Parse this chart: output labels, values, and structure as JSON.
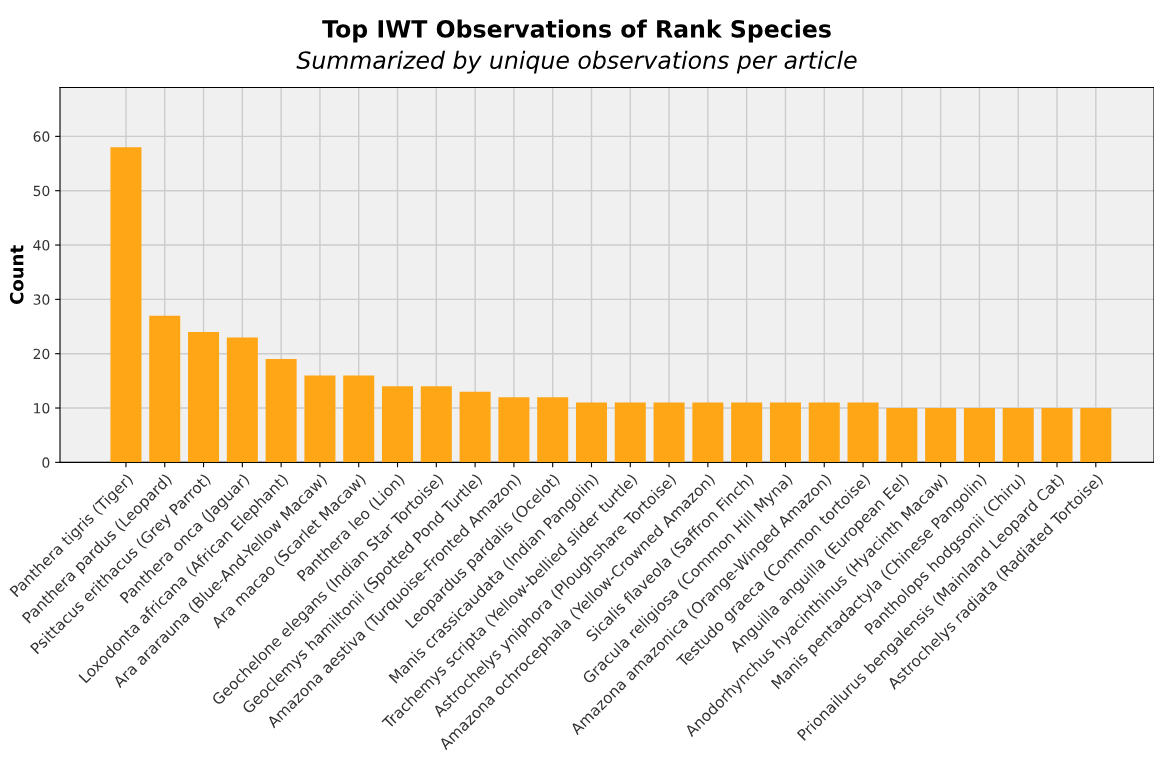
{
  "chart_data": {
    "type": "bar",
    "title": "Top IWT Observations of Rank Species",
    "subtitle": "Summarized by unique observations per article",
    "ylabel": "Count",
    "categories": [
      "Panthera tigris (Tiger)",
      "Panthera pardus (Leopard)",
      "Psittacus erithacus (Grey Parrot)",
      "Panthera onca (Jaguar)",
      "Loxodonta africana (African Elephant)",
      "Ara ararauna (Blue-And-Yellow Macaw)",
      "Ara macao (Scarlet Macaw)",
      "Panthera leo (Lion)",
      "Geochelone elegans (Indian Star Tortoise)",
      "Geoclemys hamiltonii (Spotted Pond Turtle)",
      "Amazona aestiva (Turquoise-Fronted Amazon)",
      "Leopardus pardalis (Ocelot)",
      "Manis crassicaudata (Indian Pangolin)",
      "Trachemys scripta (Yellow-bellied slider turtle)",
      "Astrochelys yniphora (Ploughshare Tortoise)",
      "Amazona ochrocephala (Yellow-Crowned Amazon)",
      "Sicalis flaveola (Saffron Finch)",
      "Gracula religiosa (Common Hill Myna)",
      "Amazona amazonica (Orange-Winged Amazon)",
      "Testudo graeca (Common tortoise)",
      "Anguilla anguilla (European Eel)",
      "Anodorhynchus hyacinthinus (Hyacinth Macaw)",
      "Manis pentadactyla (Chinese Pangolin)",
      "Pantholops hodgsonii (Chiru)",
      "Prionailurus bengalensis (Mainland Leopard Cat)",
      "Astrochelys radiata (Radiated Tortoise)"
    ],
    "values": [
      58,
      27,
      24,
      23,
      19,
      16,
      16,
      14,
      14,
      13,
      12,
      12,
      11,
      11,
      11,
      11,
      11,
      11,
      11,
      11,
      10,
      10,
      10,
      10,
      10,
      10
    ],
    "color": "#ffa616",
    "ylim": [
      0,
      69
    ],
    "yticks": [
      0,
      10,
      20,
      30,
      40,
      50,
      60
    ],
    "grid": true
  }
}
